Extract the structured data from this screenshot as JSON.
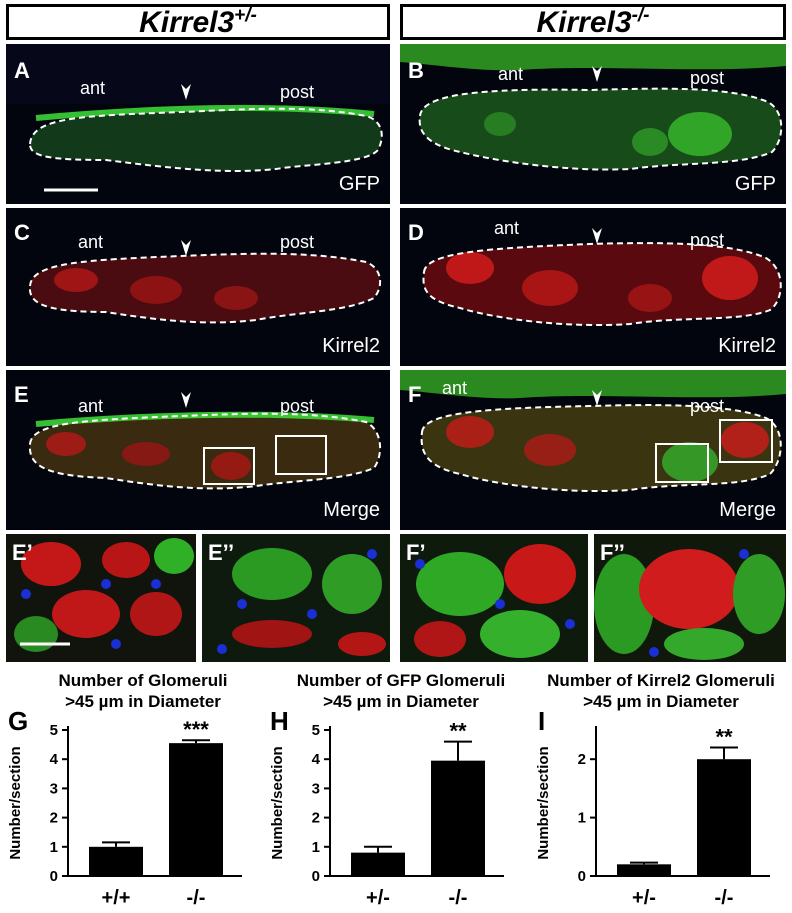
{
  "headers": {
    "left": {
      "gene": "Kirrel3",
      "sup": "+/-"
    },
    "right": {
      "gene": "Kirrel3",
      "sup": "-/-"
    }
  },
  "panels": {
    "A": {
      "label": "A",
      "ant": "ant",
      "post": "post",
      "channel": "GFP"
    },
    "B": {
      "label": "B",
      "ant": "ant",
      "post": "post",
      "channel": "GFP"
    },
    "C": {
      "label": "C",
      "ant": "ant",
      "post": "post",
      "channel": "Kirrel2"
    },
    "D": {
      "label": "D",
      "ant": "ant",
      "post": "post",
      "channel": "Kirrel2"
    },
    "E": {
      "label": "E",
      "ant": "ant",
      "post": "post",
      "channel": "Merge"
    },
    "F": {
      "label": "F",
      "ant": "ant",
      "post": "post",
      "channel": "Merge"
    },
    "E1": {
      "label": "E’"
    },
    "E2": {
      "label": "E’’"
    },
    "F1": {
      "label": "F’"
    },
    "F2": {
      "label": "F’’"
    }
  },
  "colors": {
    "gfp": "#27c41f",
    "kirrel2": "#e01414",
    "dapi": "#1a2fd6",
    "background": "#03050e"
  },
  "chart_data": [
    {
      "label": "G",
      "type": "bar",
      "title": "Number of Glomeruli >45 µm in Diameter",
      "title_lines": [
        "Number of Glomeruli",
        ">45 µm in Diameter"
      ],
      "ylabel": "Number/section",
      "categories": [
        "+/+",
        "-/-"
      ],
      "values": [
        1.0,
        4.55
      ],
      "errors": [
        0.15,
        0.1
      ],
      "significance": [
        "",
        "***"
      ],
      "ylim": [
        0,
        5
      ],
      "yticks": [
        "0",
        "1",
        "2",
        "3",
        "4",
        "5"
      ]
    },
    {
      "label": "H",
      "type": "bar",
      "title": "Number of GFP Glomeruli >45 µm in Diameter",
      "title_lines": [
        "Number of GFP Glomeruli",
        ">45 µm in Diameter"
      ],
      "ylabel": "Number/section",
      "categories": [
        "+/-",
        "-/-"
      ],
      "values": [
        0.8,
        3.95
      ],
      "errors": [
        0.2,
        0.65
      ],
      "significance": [
        "",
        "**"
      ],
      "ylim": [
        0,
        5
      ],
      "yticks": [
        "0",
        "1",
        "2",
        "3",
        "4",
        "5"
      ]
    },
    {
      "label": "I",
      "type": "bar",
      "title": "Number of Kirrel2 Glomeruli >45 µm in Diameter",
      "title_lines": [
        "Number of Kirrel2 Glomeruli",
        ">45 µm in Diameter"
      ],
      "ylabel": "Number/section",
      "categories": [
        "+/-",
        "-/-"
      ],
      "values": [
        0.2,
        2.0
      ],
      "errors": [
        0.03,
        0.2
      ],
      "significance": [
        "",
        "**"
      ],
      "ylim": [
        0,
        2.5
      ],
      "yticks": [
        "0",
        "1",
        "2"
      ]
    }
  ]
}
